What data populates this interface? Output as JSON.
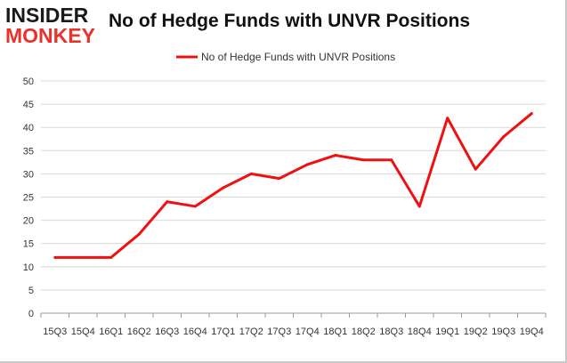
{
  "logo": {
    "line1": "INSIDER",
    "line2": "MONKEY"
  },
  "title": "No of Hedge Funds with UNVR Positions",
  "chart_data": {
    "type": "line",
    "title": "No of Hedge Funds with UNVR Positions",
    "xlabel": "",
    "ylabel": "",
    "categories": [
      "15Q3",
      "15Q4",
      "16Q1",
      "16Q2",
      "16Q3",
      "16Q4",
      "17Q1",
      "17Q2",
      "17Q3",
      "17Q4",
      "18Q1",
      "18Q2",
      "18Q3",
      "18Q4",
      "19Q1",
      "19Q2",
      "19Q3",
      "19Q4"
    ],
    "series": [
      {
        "name": "No of Hedge Funds with UNVR  Positions",
        "color": "#ee1111",
        "values": [
          12,
          12,
          12,
          17,
          24,
          23,
          27,
          30,
          29,
          32,
          34,
          33,
          33,
          23,
          42,
          31,
          38,
          43
        ]
      }
    ],
    "ylim": [
      0,
      50
    ],
    "yticks": [
      0,
      5,
      10,
      15,
      20,
      25,
      30,
      35,
      40,
      45,
      50
    ],
    "grid": true,
    "legend": "top-center"
  }
}
